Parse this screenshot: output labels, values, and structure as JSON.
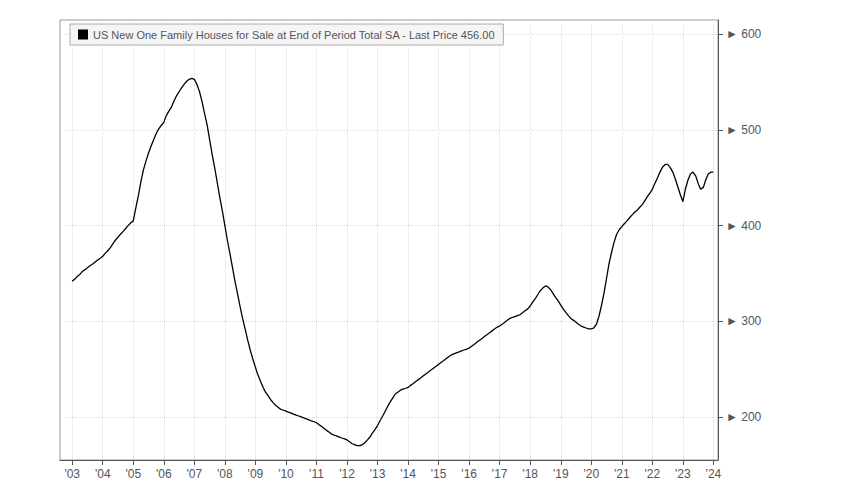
{
  "chart_data": {
    "type": "line",
    "x": [
      2003.0,
      2003.08,
      2003.17,
      2003.25,
      2003.33,
      2003.42,
      2003.5,
      2003.58,
      2003.67,
      2003.75,
      2003.83,
      2003.92,
      2004.0,
      2004.08,
      2004.17,
      2004.25,
      2004.33,
      2004.42,
      2004.5,
      2004.58,
      2004.67,
      2004.75,
      2004.83,
      2004.92,
      2005.0,
      2005.08,
      2005.17,
      2005.25,
      2005.33,
      2005.42,
      2005.5,
      2005.58,
      2005.67,
      2005.75,
      2005.83,
      2005.92,
      2006.0,
      2006.08,
      2006.17,
      2006.25,
      2006.33,
      2006.42,
      2006.5,
      2006.58,
      2006.67,
      2006.75,
      2006.83,
      2006.92,
      2007.0,
      2007.08,
      2007.17,
      2007.25,
      2007.33,
      2007.42,
      2007.5,
      2007.58,
      2007.67,
      2007.75,
      2007.83,
      2007.92,
      2008.0,
      2008.08,
      2008.17,
      2008.25,
      2008.33,
      2008.42,
      2008.5,
      2008.58,
      2008.67,
      2008.75,
      2008.83,
      2008.92,
      2009.0,
      2009.08,
      2009.17,
      2009.25,
      2009.33,
      2009.42,
      2009.5,
      2009.58,
      2009.67,
      2009.75,
      2009.83,
      2009.92,
      2010.0,
      2010.08,
      2010.17,
      2010.25,
      2010.33,
      2010.42,
      2010.5,
      2010.58,
      2010.67,
      2010.75,
      2010.83,
      2010.92,
      2011.0,
      2011.08,
      2011.17,
      2011.25,
      2011.33,
      2011.42,
      2011.5,
      2011.58,
      2011.67,
      2011.75,
      2011.83,
      2011.92,
      2012.0,
      2012.08,
      2012.17,
      2012.25,
      2012.33,
      2012.42,
      2012.5,
      2012.58,
      2012.67,
      2012.75,
      2012.83,
      2012.92,
      2013.0,
      2013.08,
      2013.17,
      2013.25,
      2013.33,
      2013.42,
      2013.5,
      2013.58,
      2013.67,
      2013.75,
      2013.83,
      2013.92,
      2014.0,
      2014.08,
      2014.17,
      2014.25,
      2014.33,
      2014.42,
      2014.5,
      2014.58,
      2014.67,
      2014.75,
      2014.83,
      2014.92,
      2015.0,
      2015.08,
      2015.17,
      2015.25,
      2015.33,
      2015.42,
      2015.5,
      2015.58,
      2015.67,
      2015.75,
      2015.83,
      2015.92,
      2016.0,
      2016.08,
      2016.17,
      2016.25,
      2016.33,
      2016.42,
      2016.5,
      2016.58,
      2016.67,
      2016.75,
      2016.83,
      2016.92,
      2017.0,
      2017.08,
      2017.17,
      2017.25,
      2017.33,
      2017.42,
      2017.5,
      2017.58,
      2017.67,
      2017.75,
      2017.83,
      2017.92,
      2018.0,
      2018.08,
      2018.17,
      2018.25,
      2018.33,
      2018.42,
      2018.5,
      2018.58,
      2018.67,
      2018.75,
      2018.83,
      2018.92,
      2019.0,
      2019.08,
      2019.17,
      2019.25,
      2019.33,
      2019.42,
      2019.5,
      2019.58,
      2019.67,
      2019.75,
      2019.83,
      2019.92,
      2020.0,
      2020.08,
      2020.17,
      2020.25,
      2020.33,
      2020.42,
      2020.5,
      2020.58,
      2020.67,
      2020.75,
      2020.83,
      2020.92,
      2021.0,
      2021.08,
      2021.17,
      2021.25,
      2021.33,
      2021.42,
      2021.5,
      2021.58,
      2021.67,
      2021.75,
      2021.83,
      2021.92,
      2022.0,
      2022.08,
      2022.17,
      2022.25,
      2022.33,
      2022.42,
      2022.5,
      2022.58,
      2022.67,
      2022.75,
      2022.83,
      2022.92,
      2023.0,
      2023.08,
      2023.17,
      2023.25,
      2023.33,
      2023.42,
      2023.5,
      2023.58,
      2023.67,
      2023.75,
      2023.83,
      2023.92,
      2024.0
    ],
    "series": [
      {
        "name": "US New One Family Houses for Sale at End of Period Total SA - Last Price 456.00",
        "color": "#000000",
        "values": [
          342,
          344,
          347,
          349,
          352,
          354,
          356,
          358,
          360,
          362,
          364,
          366,
          368,
          371,
          374,
          377,
          381,
          385,
          388,
          391,
          394,
          397,
          400,
          403,
          405,
          418,
          432,
          446,
          458,
          468,
          476,
          483,
          490,
          496,
          501,
          505,
          508,
          515,
          520,
          524,
          530,
          536,
          540,
          544,
          548,
          551,
          553,
          554,
          553,
          548,
          540,
          530,
          518,
          505,
          490,
          475,
          460,
          445,
          430,
          415,
          400,
          385,
          370,
          356,
          342,
          328,
          315,
          303,
          291,
          280,
          270,
          260,
          252,
          244,
          237,
          231,
          226,
          222,
          218,
          215,
          212,
          210,
          208,
          207,
          206,
          205,
          204,
          203,
          202,
          201,
          200,
          199,
          198,
          197,
          196,
          195,
          194,
          192,
          190,
          188,
          186,
          184,
          182,
          181,
          180,
          179,
          178,
          177,
          176,
          174,
          172,
          171,
          170,
          170,
          171,
          173,
          176,
          179,
          183,
          187,
          191,
          196,
          201,
          206,
          211,
          216,
          220,
          224,
          226,
          228,
          229,
          230,
          231,
          233,
          235,
          237,
          239,
          241,
          243,
          245,
          247,
          249,
          251,
          253,
          255,
          257,
          259,
          261,
          263,
          265,
          266,
          267,
          268,
          269,
          270,
          271,
          272,
          274,
          276,
          278,
          280,
          282,
          284,
          286,
          288,
          290,
          292,
          294,
          295,
          297,
          299,
          301,
          303,
          304,
          305,
          306,
          307,
          309,
          311,
          313,
          316,
          320,
          324,
          328,
          332,
          335,
          337,
          336,
          333,
          329,
          325,
          321,
          317,
          313,
          309,
          306,
          303,
          301,
          299,
          297,
          295,
          294,
          293,
          292,
          292,
          293,
          297,
          305,
          316,
          330,
          345,
          360,
          373,
          383,
          391,
          396,
          399,
          402,
          405,
          408,
          411,
          414,
          416,
          419,
          422,
          426,
          430,
          434,
          438,
          444,
          450,
          456,
          461,
          464,
          464,
          461,
          456,
          449,
          441,
          432,
          425,
          438,
          448,
          454,
          456,
          452,
          444,
          438,
          440,
          448,
          454,
          456,
          456
        ]
      }
    ],
    "xlim": [
      2002.6,
      2024.15
    ],
    "xticks": [
      {
        "value": 2003,
        "label": "'03"
      },
      {
        "value": 2004,
        "label": "'04"
      },
      {
        "value": 2005,
        "label": "'05"
      },
      {
        "value": 2006,
        "label": "'06"
      },
      {
        "value": 2007,
        "label": "'07"
      },
      {
        "value": 2008,
        "label": "'08"
      },
      {
        "value": 2009,
        "label": "'09"
      },
      {
        "value": 2010,
        "label": "'10"
      },
      {
        "value": 2011,
        "label": "'11"
      },
      {
        "value": 2012,
        "label": "'12"
      },
      {
        "value": 2013,
        "label": "'13"
      },
      {
        "value": 2014,
        "label": "'14"
      },
      {
        "value": 2015,
        "label": "'15"
      },
      {
        "value": 2016,
        "label": "'16"
      },
      {
        "value": 2017,
        "label": "'17"
      },
      {
        "value": 2018,
        "label": "'18"
      },
      {
        "value": 2019,
        "label": "'19"
      },
      {
        "value": 2020,
        "label": "'20"
      },
      {
        "value": 2021,
        "label": "'21"
      },
      {
        "value": 2022,
        "label": "'22"
      },
      {
        "value": 2023,
        "label": "'23"
      },
      {
        "value": 2024,
        "label": "'24"
      }
    ],
    "ylim": [
      155,
      615
    ],
    "yticks": [
      {
        "value": 200,
        "label": "► 200"
      },
      {
        "value": 300,
        "label": "► 300"
      },
      {
        "value": 400,
        "label": "► 400"
      },
      {
        "value": 500,
        "label": "► 500"
      },
      {
        "value": 600,
        "label": "► 600"
      }
    ],
    "annotations": [
      {
        "text": "456.00",
        "y": 456
      }
    ],
    "grid": true,
    "legend": "upper left"
  }
}
